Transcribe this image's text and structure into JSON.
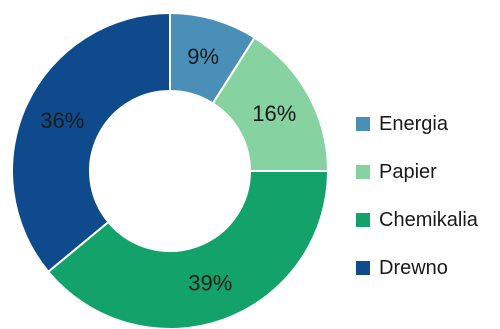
{
  "chart_data": {
    "type": "pie",
    "donut": true,
    "legend_position": "right",
    "slices": [
      {
        "name": "Energia",
        "value": 9,
        "label": "9%",
        "color": "#4a8fb8"
      },
      {
        "name": "Papier",
        "value": 16,
        "label": "16%",
        "color": "#86d3a1"
      },
      {
        "name": "Chemikalia",
        "value": 39,
        "label": "39%",
        "color": "#13a36a"
      },
      {
        "name": "Drewno",
        "value": 36,
        "label": "36%",
        "color": "#0e4a8c"
      }
    ]
  }
}
